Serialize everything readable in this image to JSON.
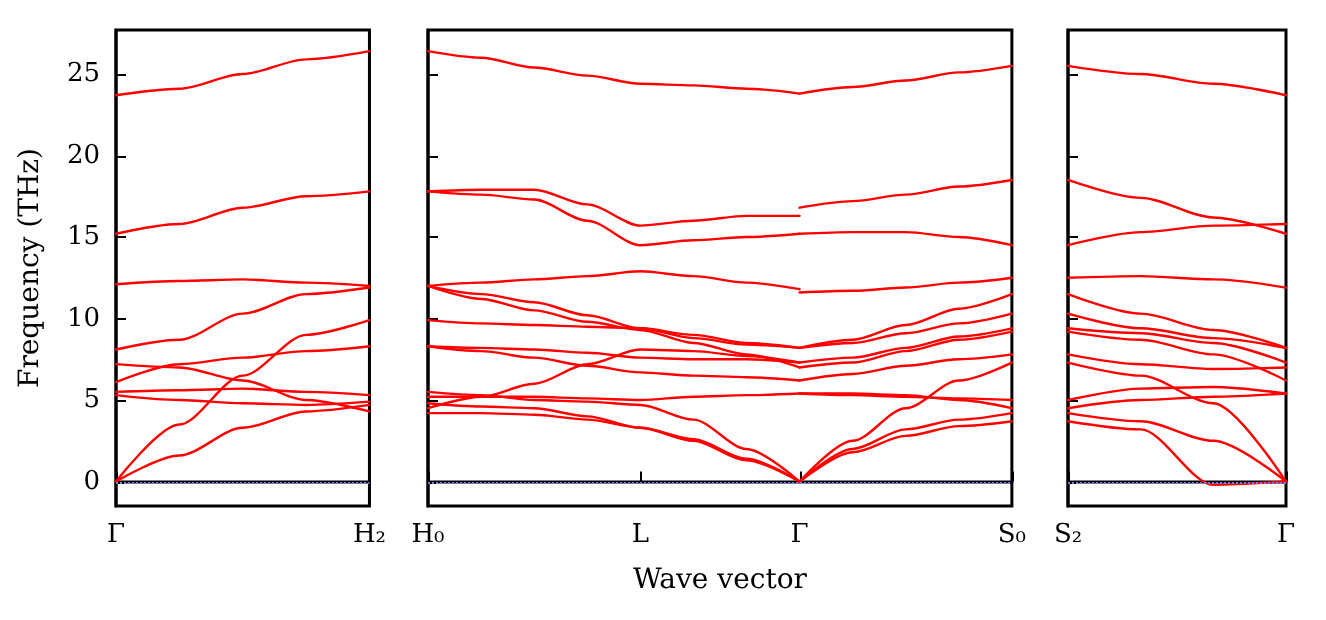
{
  "chart_data": [
    {
      "type": "line",
      "ylabel": "Frequency (THz)",
      "categories": [
        "Γ",
        null,
        null,
        null,
        "H₂"
      ],
      "ylim": [
        -1.5,
        27.7
      ],
      "yticks": [
        0,
        5,
        10,
        15,
        20,
        25
      ],
      "marker": "none",
      "line_style": "solid",
      "ref_lines": [
        {
          "axis": "y",
          "value": 0,
          "label": null,
          "color": "#7777dd",
          "line_style": "dotted"
        }
      ],
      "series": [
        {
          "color": "#ff0000",
          "values": [
            23.7,
            24.1,
            25.0,
            25.9,
            26.4
          ]
        },
        {
          "color": "#ff0000",
          "values": [
            15.2,
            15.8,
            16.8,
            17.5,
            17.8
          ]
        },
        {
          "color": "#ff0000",
          "values": [
            12.1,
            12.3,
            12.4,
            12.2,
            12.0
          ]
        },
        {
          "color": "#ff0000",
          "values": [
            8.1,
            8.7,
            10.3,
            11.5,
            11.9
          ]
        },
        {
          "color": "#ff0000",
          "values": [
            7.2,
            7.0,
            6.2,
            5.0,
            4.3
          ]
        },
        {
          "color": "#ff0000",
          "values": [
            6.1,
            7.2,
            7.6,
            8.0,
            8.3
          ]
        },
        {
          "color": "#ff0000",
          "values": [
            5.5,
            5.6,
            5.7,
            5.5,
            5.3
          ]
        },
        {
          "color": "#ff0000",
          "values": [
            5.3,
            5.0,
            4.8,
            4.7,
            4.9
          ]
        },
        {
          "color": "#ff0000",
          "values": [
            0,
            3.5,
            6.5,
            9.0,
            9.9
          ]
        },
        {
          "color": "#ff0000",
          "values": [
            0,
            1.6,
            3.3,
            4.3,
            4.7
          ]
        }
      ]
    },
    {
      "type": "line",
      "xlabel": "Wave vector",
      "tick_labels": "x",
      "categories": [
        "H₀",
        null,
        null,
        null,
        "L",
        null,
        null,
        "Γ",
        null,
        null,
        null,
        "S₀"
      ],
      "ylim": [
        -1.5,
        27.7
      ],
      "yticks": [
        0,
        5,
        10,
        15,
        20,
        25
      ],
      "marker": "none",
      "line_style": "solid",
      "ref_lines": [
        {
          "axis": "y",
          "value": 0,
          "label": null,
          "color": "#7777dd",
          "line_style": "dotted"
        }
      ],
      "series": [
        {
          "color": "#ff0000",
          "values": [
            26.4,
            26.0,
            25.4,
            24.9,
            24.4,
            24.3,
            24.1,
            23.8,
            null,
            null,
            null,
            null
          ]
        },
        {
          "color": "#ff0000",
          "values": [
            17.8,
            17.9,
            17.9,
            17.0,
            15.7,
            16.0,
            16.3,
            16.3,
            null,
            null,
            null,
            null
          ]
        },
        {
          "color": "#ff0000",
          "values": [
            17.8,
            17.6,
            17.3,
            16.0,
            14.5,
            14.8,
            15.0,
            15.2,
            null,
            null,
            null,
            null
          ]
        },
        {
          "color": "#ff0000",
          "values": [
            12.0,
            12.2,
            12.4,
            12.6,
            12.9,
            12.6,
            12.2,
            11.8,
            null,
            null,
            null,
            null
          ]
        },
        {
          "color": "#ff0000",
          "values": [
            12.0,
            11.5,
            11.0,
            10.2,
            9.4,
            8.8,
            8.4,
            8.2,
            null,
            null,
            null,
            null
          ]
        },
        {
          "color": "#ff0000",
          "values": [
            12.0,
            11.2,
            10.5,
            9.8,
            9.3,
            8.5,
            7.8,
            7.0,
            null,
            null,
            null,
            null
          ]
        },
        {
          "color": "#ff0000",
          "values": [
            9.9,
            9.7,
            9.6,
            9.5,
            9.4,
            9.0,
            8.5,
            8.2,
            null,
            null,
            null,
            null
          ]
        },
        {
          "color": "#ff0000",
          "values": [
            8.3,
            8.2,
            8.1,
            7.9,
            7.6,
            7.5,
            7.5,
            7.3,
            null,
            null,
            null,
            null
          ]
        },
        {
          "color": "#ff0000",
          "values": [
            8.3,
            8.0,
            7.6,
            7.1,
            6.7,
            6.5,
            6.4,
            6.2,
            null,
            null,
            null,
            null
          ]
        },
        {
          "color": "#ff0000",
          "values": [
            4.5,
            5.2,
            6.0,
            7.2,
            8.1,
            8.0,
            7.7,
            7.3,
            null,
            null,
            null,
            null
          ]
        },
        {
          "color": "#ff0000",
          "values": [
            5.2,
            5.2,
            5.2,
            5.1,
            5.0,
            5.2,
            5.3,
            5.4,
            null,
            null,
            null,
            null
          ]
        },
        {
          "color": "#ff0000",
          "values": [
            4.2,
            4.2,
            4.1,
            3.8,
            3.3,
            2.5,
            1.3,
            0,
            null,
            null,
            null,
            null
          ]
        },
        {
          "color": "#ff0000",
          "values": [
            4.8,
            4.6,
            4.5,
            4.0,
            3.3,
            2.6,
            1.4,
            0,
            null,
            null,
            null,
            null
          ]
        },
        {
          "color": "#ff0000",
          "values": [
            5.5,
            5.3,
            5.0,
            4.9,
            4.7,
            3.8,
            2.0,
            0,
            null,
            null,
            null,
            null
          ]
        },
        {
          "color": "#ff0000",
          "values": [
            null,
            null,
            null,
            null,
            null,
            null,
            null,
            23.8,
            24.2,
            24.6,
            25.1,
            25.5
          ]
        },
        {
          "color": "#ff0000",
          "values": [
            null,
            null,
            null,
            null,
            null,
            null,
            null,
            16.8,
            17.2,
            17.6,
            18.1,
            18.5
          ]
        },
        {
          "color": "#ff0000",
          "values": [
            null,
            null,
            null,
            null,
            null,
            null,
            null,
            15.2,
            15.3,
            15.3,
            15.0,
            14.5
          ]
        },
        {
          "color": "#ff0000",
          "values": [
            null,
            null,
            null,
            null,
            null,
            null,
            null,
            11.6,
            11.7,
            11.9,
            12.2,
            12.5
          ]
        },
        {
          "color": "#ff0000",
          "values": [
            null,
            null,
            null,
            null,
            null,
            null,
            null,
            8.2,
            8.7,
            9.6,
            10.6,
            11.5
          ]
        },
        {
          "color": "#ff0000",
          "values": [
            null,
            null,
            null,
            null,
            null,
            null,
            null,
            8.2,
            8.5,
            9.1,
            9.7,
            10.3
          ]
        },
        {
          "color": "#ff0000",
          "values": [
            null,
            null,
            null,
            null,
            null,
            null,
            null,
            7.3,
            7.6,
            8.2,
            8.9,
            9.4
          ]
        },
        {
          "color": "#ff0000",
          "values": [
            null,
            null,
            null,
            null,
            null,
            null,
            null,
            7.0,
            7.3,
            8.0,
            8.7,
            9.2
          ]
        },
        {
          "color": "#ff0000",
          "values": [
            null,
            null,
            null,
            null,
            null,
            null,
            null,
            6.2,
            6.6,
            7.1,
            7.5,
            7.8
          ]
        },
        {
          "color": "#ff0000",
          "values": [
            null,
            null,
            null,
            null,
            null,
            null,
            null,
            5.4,
            5.3,
            5.2,
            5.1,
            5.0
          ]
        },
        {
          "color": "#ff0000",
          "values": [
            null,
            null,
            null,
            null,
            null,
            null,
            null,
            5.4,
            5.4,
            5.3,
            5.0,
            4.5
          ]
        },
        {
          "color": "#ff0000",
          "values": [
            null,
            null,
            null,
            null,
            null,
            null,
            null,
            0,
            1.8,
            2.8,
            3.4,
            3.7
          ]
        },
        {
          "color": "#ff0000",
          "values": [
            null,
            null,
            null,
            null,
            null,
            null,
            null,
            0,
            2.0,
            3.2,
            3.8,
            4.2
          ]
        },
        {
          "color": "#ff0000",
          "values": [
            null,
            null,
            null,
            null,
            null,
            null,
            null,
            0,
            2.5,
            4.5,
            6.2,
            7.3
          ]
        }
      ]
    },
    {
      "type": "line",
      "tick_labels": "x",
      "categories": [
        "S₂",
        null,
        null,
        "Γ"
      ],
      "ylim": [
        -1.5,
        27.7
      ],
      "yticks": [
        0,
        5,
        10,
        15,
        20,
        25
      ],
      "marker": "none",
      "line_style": "solid",
      "ref_lines": [
        {
          "axis": "y",
          "value": 0,
          "label": null,
          "color": "#7777dd",
          "line_style": "dotted"
        }
      ],
      "series": [
        {
          "color": "#ff0000",
          "values": [
            25.5,
            25.0,
            24.4,
            23.7
          ]
        },
        {
          "color": "#ff0000",
          "values": [
            18.5,
            17.4,
            16.2,
            15.2
          ]
        },
        {
          "color": "#ff0000",
          "values": [
            14.5,
            15.3,
            15.7,
            15.8
          ]
        },
        {
          "color": "#ff0000",
          "values": [
            12.5,
            12.6,
            12.4,
            11.9
          ]
        },
        {
          "color": "#ff0000",
          "values": [
            11.5,
            10.3,
            9.3,
            8.2
          ]
        },
        {
          "color": "#ff0000",
          "values": [
            10.3,
            9.4,
            8.8,
            8.2
          ]
        },
        {
          "color": "#ff0000",
          "values": [
            9.4,
            9.1,
            8.5,
            7.3
          ]
        },
        {
          "color": "#ff0000",
          "values": [
            9.2,
            8.7,
            7.8,
            6.2
          ]
        },
        {
          "color": "#ff0000",
          "values": [
            7.8,
            7.2,
            6.9,
            7.0
          ]
        },
        {
          "color": "#ff0000",
          "values": [
            7.3,
            6.5,
            4.8,
            0
          ]
        },
        {
          "color": "#ff0000",
          "values": [
            5.0,
            5.7,
            5.8,
            5.4
          ]
        },
        {
          "color": "#ff0000",
          "values": [
            4.5,
            5.0,
            5.2,
            5.4
          ]
        },
        {
          "color": "#ff0000",
          "values": [
            4.2,
            3.7,
            2.5,
            0
          ]
        },
        {
          "color": "#ff0000",
          "values": [
            3.7,
            3.2,
            -0.2,
            0
          ]
        }
      ]
    }
  ]
}
